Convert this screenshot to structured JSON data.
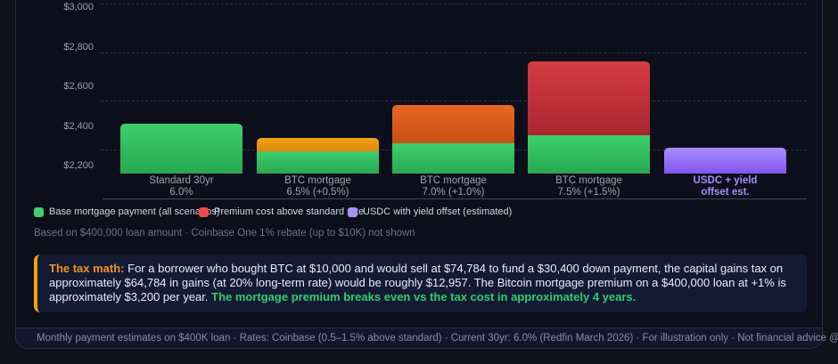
{
  "chart_data": {
    "type": "stacked-bar",
    "title": "",
    "unit": "USD per month",
    "y_axis": {
      "ticks": [
        {
          "label": "$3,000",
          "value": 3000
        },
        {
          "label": "$2,800",
          "value": 2800
        },
        {
          "label": "$2,600",
          "value": 2600
        },
        {
          "label": "$2,400",
          "value": 2400
        },
        {
          "label": "$2,200",
          "value": 2200
        }
      ],
      "baseline_value": 2162,
      "grid_style": "dashed",
      "ylim": [
        2162,
        3050
      ]
    },
    "bars": [
      {
        "category": [
          "Standard 30yr",
          "6.0%"
        ],
        "highlight": false,
        "segments": [
          {
            "series": "base",
            "value_top": 2412,
            "color_top": "#3ecf6e",
            "color_bottom": "#28a850"
          }
        ]
      },
      {
        "category": [
          "BTC mortgage",
          "6.5% (+0.5%)"
        ],
        "highlight": false,
        "segments": [
          {
            "series": "base",
            "value_top": 2276,
            "color_top": "#3ecf6e",
            "color_bottom": "#28a850"
          },
          {
            "series": "premium",
            "value_top": 2341,
            "color_top": "#f0a413",
            "color_bottom": "#de860d"
          }
        ]
      },
      {
        "category": [
          "BTC mortgage",
          "7.0% (+1.0%)"
        ],
        "highlight": false,
        "segments": [
          {
            "series": "base",
            "value_top": 2316,
            "color_top": "#3ecf6e",
            "color_bottom": "#28a850"
          },
          {
            "series": "premium",
            "value_top": 2506,
            "color_top": "#e8691f",
            "color_bottom": "#c64f14"
          }
        ]
      },
      {
        "category": [
          "BTC mortgage",
          "7.5% (+1.5%)"
        ],
        "highlight": false,
        "segments": [
          {
            "series": "base",
            "value_top": 2356,
            "color_top": "#3ecf6e",
            "color_bottom": "#28a850"
          },
          {
            "series": "premium",
            "value_top": 2726,
            "color_top": "#d63c44",
            "color_bottom": "#a8262f"
          }
        ]
      },
      {
        "category": [
          "USDC + yield",
          "offset est."
        ],
        "highlight": true,
        "segments": [
          {
            "series": "usdc",
            "value_top": 2291,
            "color_top": "#a98dfa",
            "color_bottom": "#8454f1"
          }
        ]
      }
    ],
    "legend": [
      {
        "label": "Base mortgage payment (all scenarios)",
        "color": "#3ecf6e"
      },
      {
        "label": "Premium cost above standard rate",
        "color": "#ee4b4b"
      },
      {
        "label": "USDC with yield offset (estimated)",
        "color": "#ab92fb"
      }
    ],
    "legend_position": "bottom-left"
  },
  "note": "Based on $400,000 loan amount · Coinbase One 1% rebate (up to $10K) not shown",
  "callout": {
    "label": "The tax math:",
    "body": "For a borrower who bought BTC at $10,000 and would sell at $74,784 to fund a $30,400 down payment, the capital gains tax on approximately $64,784 in gains (at 20% long-term rate) would be roughly $12,957. The Bitcoin mortgage premium on a $400,000 loan at +1% is approximately $3,200 per year.",
    "highlight": "The mortgage premium breaks even vs the tax cost in approximately 4 years."
  },
  "footer": "Monthly payment estimates on $400K loan · Rates: Coinbase (0.5–1.5% above standard) · Current 30yr: 6.0% (Redfin March 2026) · For illustration only · Not financial advice @CryptoNewsBytes",
  "colors": {
    "accent_orange": "#f59e0b",
    "highlight_green": "#2ecc71",
    "highlight_purple": "#a78bfa",
    "base_green": "#3ecf6e",
    "premium_red": "#ee4b4b"
  }
}
